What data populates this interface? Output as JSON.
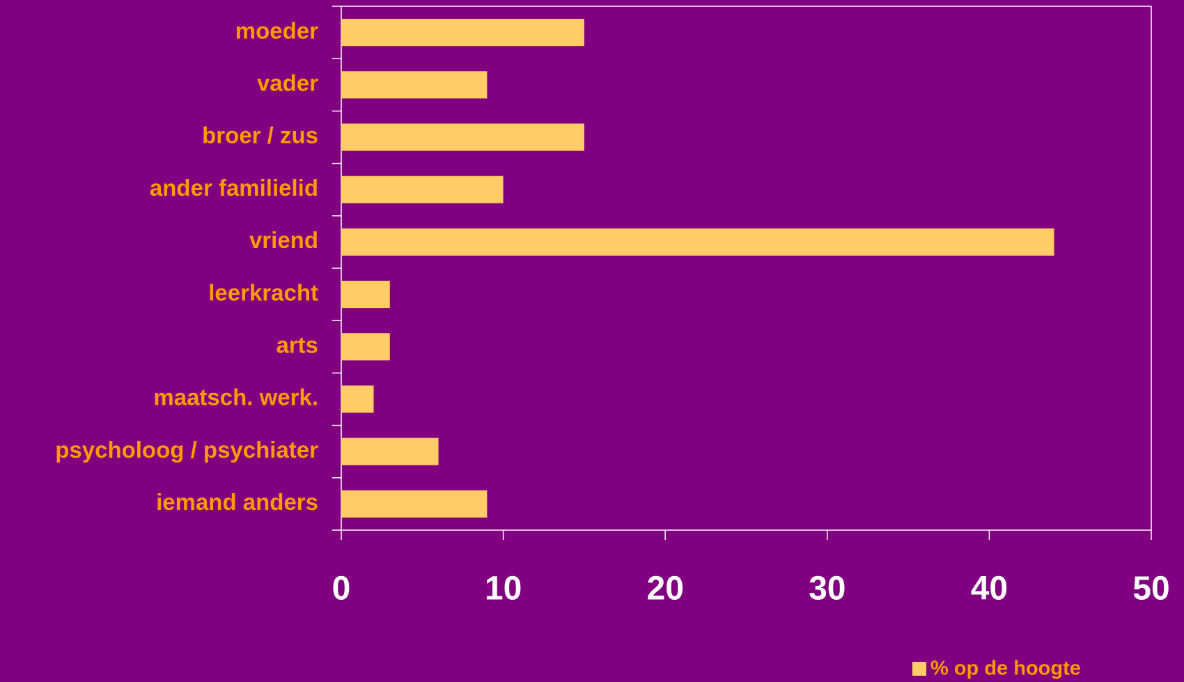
{
  "chart_data": {
    "type": "bar",
    "orientation": "horizontal",
    "categories": [
      "moeder",
      "vader",
      "broer / zus",
      "ander familielid",
      "vriend",
      "leerkracht",
      "arts",
      "maatsch. werk.",
      "psycholoog / psychiater",
      "iemand anders"
    ],
    "series": [
      {
        "name": "% op de hoogte",
        "color": "#ffcc66",
        "values": [
          15,
          9,
          15,
          10,
          44,
          3,
          3,
          2,
          6,
          9
        ]
      }
    ],
    "xlim": [
      0,
      50
    ],
    "xticks": [
      0,
      10,
      20,
      30,
      40,
      50
    ],
    "legend": "bottom-right"
  }
}
